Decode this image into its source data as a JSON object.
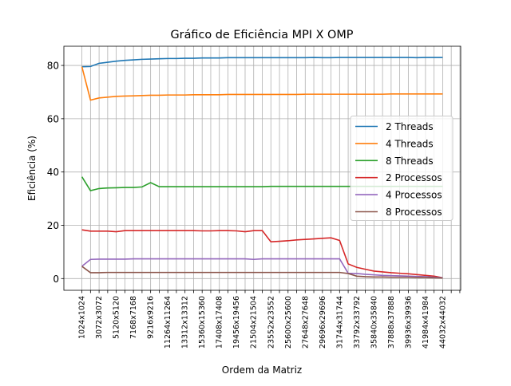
{
  "chart_data": {
    "type": "line",
    "title": "Gráfico de Eficiência MPI X OMP",
    "x_label": "Ordem da Matriz",
    "y_label": "Eficiência (%)",
    "categories": [
      "1024x1024",
      null,
      "3072x3072",
      null,
      "5120x5120",
      null,
      "7168x7168",
      null,
      "9216x9216",
      null,
      "11264x11264",
      null,
      "13312x13312",
      null,
      "15360x15360",
      null,
      "17408x17408",
      null,
      "19456x19456",
      null,
      "21504x21504",
      null,
      "23552x23552",
      null,
      "25600x25600",
      null,
      "27648x27648",
      null,
      "29696x29696",
      null,
      "31744x31744",
      null,
      "33792x33792",
      null,
      "35840x35840",
      null,
      "37888x37888",
      null,
      "39936x39936",
      null,
      "41984x41984",
      null,
      "44032x44032",
      null,
      null
    ],
    "series": [
      {
        "name": "2 Threads",
        "color": "#1f77b4",
        "values": [
          79.5,
          79.6,
          80.8,
          81.2,
          81.6,
          81.9,
          82.1,
          82.3,
          82.4,
          82.5,
          82.6,
          82.6,
          82.7,
          82.7,
          82.8,
          82.8,
          82.8,
          82.9,
          82.9,
          82.9,
          82.9,
          82.9,
          82.9,
          82.9,
          82.9,
          82.9,
          82.9,
          83.0,
          82.9,
          82.9,
          83.0,
          83.0,
          83.0,
          83.0,
          83.0,
          83.0,
          83.0,
          83.0,
          83.0,
          82.9,
          83.0,
          83.0,
          83.0,
          null,
          null
        ]
      },
      {
        "name": "4 Threads",
        "color": "#ff7f0e",
        "values": [
          79.5,
          67.0,
          67.8,
          68.1,
          68.4,
          68.5,
          68.6,
          68.7,
          68.8,
          68.8,
          68.9,
          68.9,
          68.9,
          69.0,
          69.0,
          69.0,
          69.0,
          69.1,
          69.1,
          69.1,
          69.1,
          69.1,
          69.1,
          69.1,
          69.1,
          69.1,
          69.2,
          69.2,
          69.2,
          69.2,
          69.2,
          69.2,
          69.2,
          69.2,
          69.2,
          69.2,
          69.3,
          69.3,
          69.3,
          69.3,
          69.3,
          69.3,
          69.3,
          null,
          null
        ]
      },
      {
        "name": "8 Threads",
        "color": "#2ca02c",
        "values": [
          38.2,
          33.0,
          33.8,
          34.0,
          34.1,
          34.2,
          34.2,
          34.4,
          36.0,
          34.5,
          34.5,
          34.5,
          34.5,
          34.5,
          34.5,
          34.5,
          34.5,
          34.5,
          34.5,
          34.5,
          34.5,
          34.5,
          34.6,
          34.6,
          34.6,
          34.6,
          34.6,
          34.6,
          34.6,
          34.6,
          34.6,
          34.6,
          34.6,
          34.6,
          34.6,
          34.6,
          34.6,
          34.6,
          34.6,
          34.6,
          34.6,
          34.6,
          34.6,
          null,
          null
        ]
      },
      {
        "name": "2 Processos",
        "color": "#d62728",
        "values": [
          18.3,
          17.8,
          17.8,
          17.8,
          17.6,
          18.0,
          18.0,
          18.0,
          18.0,
          18.0,
          18.0,
          18.0,
          18.0,
          18.0,
          17.9,
          17.9,
          18.0,
          18.0,
          17.9,
          17.6,
          18.0,
          18.0,
          13.8,
          14.0,
          14.2,
          14.5,
          14.7,
          14.9,
          15.1,
          15.3,
          14.3,
          5.5,
          4.2,
          3.5,
          2.8,
          2.5,
          2.2,
          2.0,
          1.8,
          1.5,
          1.2,
          0.9,
          0.3,
          null,
          null
        ]
      },
      {
        "name": "4 Processos",
        "color": "#9467bd",
        "values": [
          4.6,
          7.2,
          7.3,
          7.3,
          7.3,
          7.3,
          7.4,
          7.4,
          7.4,
          7.4,
          7.4,
          7.4,
          7.4,
          7.4,
          7.4,
          7.4,
          7.4,
          7.4,
          7.4,
          7.4,
          7.2,
          7.4,
          7.4,
          7.4,
          7.4,
          7.4,
          7.4,
          7.4,
          7.4,
          7.4,
          7.4,
          2.0,
          1.9,
          1.6,
          1.4,
          1.2,
          1.1,
          1.0,
          0.9,
          0.8,
          0.7,
          0.5,
          0.3,
          null,
          null
        ]
      },
      {
        "name": "8 Processos",
        "color": "#8c564b",
        "values": [
          4.6,
          2.2,
          2.2,
          2.3,
          2.3,
          2.3,
          2.3,
          2.3,
          2.3,
          2.3,
          2.3,
          2.3,
          2.3,
          2.3,
          2.3,
          2.3,
          2.3,
          2.3,
          2.3,
          2.3,
          2.3,
          2.3,
          2.3,
          2.3,
          2.3,
          2.3,
          2.3,
          2.3,
          2.3,
          2.3,
          2.3,
          1.9,
          0.9,
          0.7,
          0.6,
          0.6,
          0.5,
          0.5,
          0.5,
          0.4,
          0.4,
          0.3,
          0.2,
          null,
          null
        ]
      }
    ],
    "xlim": [
      -2.1,
      44.1
    ],
    "ylim": [
      -4.4,
      87.2
    ],
    "yticks": [
      0,
      20,
      40,
      60,
      80
    ],
    "grid": true,
    "legend": "center right"
  }
}
